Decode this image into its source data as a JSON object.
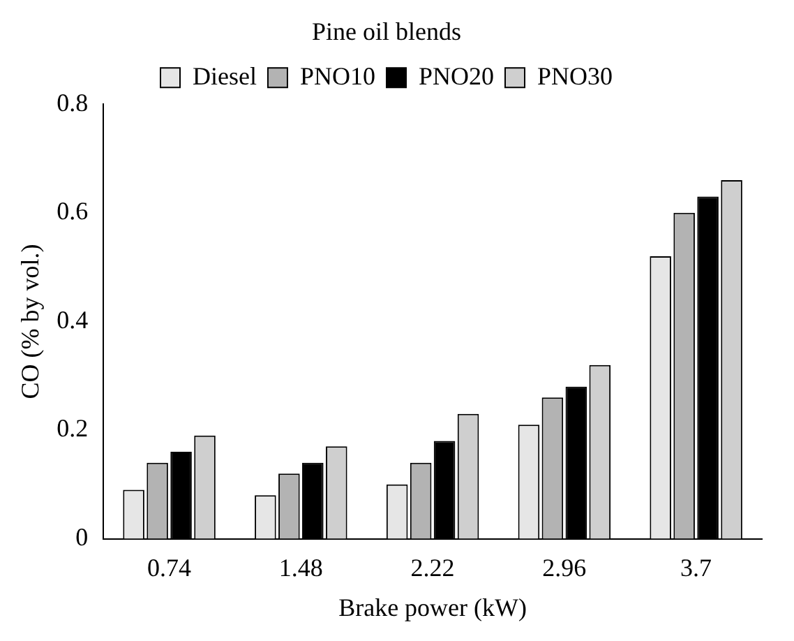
{
  "chart_data": {
    "type": "bar",
    "xlabel": "Brake power (kW)",
    "ylabel": "CO (% by vol.)",
    "legend_title": "Pine oil blends",
    "categories": [
      "0.74",
      "1.48",
      "2.22",
      "2.96",
      "3.7"
    ],
    "series": [
      {
        "name": "Diesel",
        "color": "#e6e6e6",
        "values": [
          0.09,
          0.08,
          0.1,
          0.21,
          0.52
        ]
      },
      {
        "name": "PNO10",
        "color": "#b3b3b3",
        "values": [
          0.14,
          0.12,
          0.14,
          0.26,
          0.6
        ]
      },
      {
        "name": "PNO20",
        "color": "#000000",
        "values": [
          0.16,
          0.14,
          0.18,
          0.28,
          0.63
        ]
      },
      {
        "name": "PNO30",
        "color": "#cfcfcf",
        "values": [
          0.19,
          0.17,
          0.23,
          0.32,
          0.66
        ]
      }
    ],
    "ylim": [
      0,
      0.8
    ],
    "yticks": [
      0,
      0.2,
      0.4,
      0.6,
      0.8
    ],
    "grid": false,
    "legend": "top"
  }
}
